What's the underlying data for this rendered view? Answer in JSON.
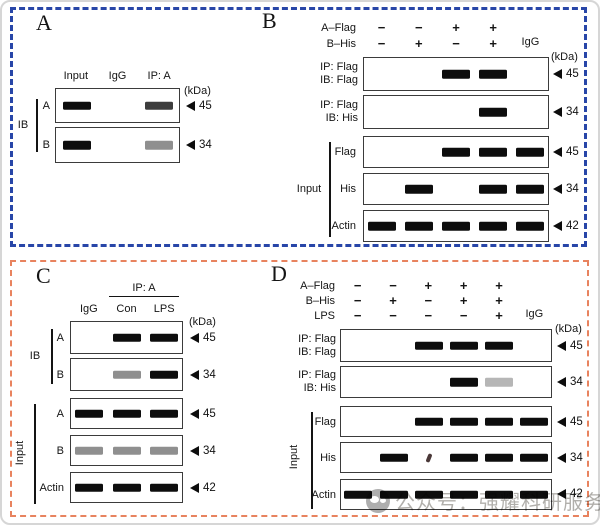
{
  "colors": {
    "top_section_border": "#2846a8",
    "bottom_section_border": "#e8835f",
    "band_black": "#0d0d0d",
    "band_dark": "#3d3d3d",
    "band_gray": "#8f8f8f",
    "band_light": "#b6b6b6"
  },
  "watermark": {
    "icon": "chat-logo-icon",
    "text": "公众号：强耀科研服务"
  },
  "panel_a": {
    "letter": "A",
    "col_headers": [
      "Input",
      "IgG",
      "IP: A"
    ],
    "kda": "(kDa)",
    "group_ib": "IB",
    "rows": [
      {
        "label": "A",
        "marker": "45",
        "lanes": 3,
        "bands": [
          {
            "lane": 0,
            "shade": "black"
          },
          {
            "lane": 2,
            "shade": "dark"
          }
        ]
      },
      {
        "label": "B",
        "marker": "34",
        "lanes": 3,
        "bands": [
          {
            "lane": 0,
            "shade": "black"
          },
          {
            "lane": 2,
            "shade": "gray"
          }
        ]
      }
    ]
  },
  "panel_b": {
    "letter": "B",
    "kda": "(kDa)",
    "group_input": "Input",
    "header_rows": [
      {
        "label": "A–Flag",
        "cells": [
          "−",
          "−",
          "+",
          "+",
          ""
        ]
      },
      {
        "label": "B–His",
        "cells": [
          "−",
          "+",
          "−",
          "+",
          "IgG"
        ]
      }
    ],
    "ip_rows": [
      {
        "label1": "IP: Flag",
        "label2": "IB: Flag",
        "marker": "45",
        "lanes": 5,
        "bands": [
          {
            "lane": 2,
            "shade": "black"
          },
          {
            "lane": 3,
            "shade": "black"
          }
        ]
      },
      {
        "label1": "IP: Flag",
        "label2": "IB: His",
        "marker": "34",
        "lanes": 5,
        "bands": [
          {
            "lane": 3,
            "shade": "black"
          }
        ]
      }
    ],
    "input_rows": [
      {
        "label": "Flag",
        "marker": "45",
        "lanes": 5,
        "bands": [
          {
            "lane": 2,
            "shade": "black"
          },
          {
            "lane": 3,
            "shade": "black"
          },
          {
            "lane": 4,
            "shade": "black"
          }
        ]
      },
      {
        "label": "His",
        "marker": "34",
        "lanes": 5,
        "bands": [
          {
            "lane": 1,
            "shade": "black"
          },
          {
            "lane": 3,
            "shade": "black"
          },
          {
            "lane": 4,
            "shade": "black"
          }
        ]
      },
      {
        "label": "Actin",
        "marker": "42",
        "lanes": 5,
        "bands": [
          {
            "lane": 0,
            "shade": "black"
          },
          {
            "lane": 1,
            "shade": "black"
          },
          {
            "lane": 2,
            "shade": "black"
          },
          {
            "lane": 3,
            "shade": "black"
          },
          {
            "lane": 4,
            "shade": "black"
          }
        ]
      }
    ]
  },
  "panel_c": {
    "letter": "C",
    "ip_overline": "IP: A",
    "col_headers": [
      "IgG",
      "Con",
      "LPS"
    ],
    "kda": "(kDa)",
    "group_ib": "IB",
    "group_input": "Input",
    "ib_rows": [
      {
        "label": "A",
        "marker": "45",
        "lanes": 3,
        "bands": [
          {
            "lane": 1,
            "shade": "black"
          },
          {
            "lane": 2,
            "shade": "black"
          }
        ]
      },
      {
        "label": "B",
        "marker": "34",
        "lanes": 3,
        "bands": [
          {
            "lane": 1,
            "shade": "gray"
          },
          {
            "lane": 2,
            "shade": "black"
          }
        ]
      }
    ],
    "input_rows": [
      {
        "label": "A",
        "marker": "45",
        "lanes": 3,
        "bands": [
          {
            "lane": 0,
            "shade": "black"
          },
          {
            "lane": 1,
            "shade": "black"
          },
          {
            "lane": 2,
            "shade": "black"
          }
        ]
      },
      {
        "label": "B",
        "marker": "34",
        "lanes": 3,
        "bands": [
          {
            "lane": 0,
            "shade": "gray"
          },
          {
            "lane": 1,
            "shade": "gray"
          },
          {
            "lane": 2,
            "shade": "gray"
          }
        ]
      },
      {
        "label": "Actin",
        "marker": "42",
        "lanes": 3,
        "bands": [
          {
            "lane": 0,
            "shade": "black"
          },
          {
            "lane": 1,
            "shade": "black"
          },
          {
            "lane": 2,
            "shade": "black"
          }
        ]
      }
    ]
  },
  "panel_d": {
    "letter": "D",
    "kda": "(kDa)",
    "group_input": "Input",
    "header_rows": [
      {
        "label": "A–Flag",
        "cells": [
          "−",
          "−",
          "+",
          "+",
          "+",
          ""
        ]
      },
      {
        "label": "B–His",
        "cells": [
          "−",
          "+",
          "−",
          "+",
          "+",
          ""
        ]
      },
      {
        "label": "LPS",
        "cells": [
          "−",
          "−",
          "−",
          "−",
          "+",
          "IgG"
        ]
      }
    ],
    "ip_rows": [
      {
        "label1": "IP: Flag",
        "label2": "IB: Flag",
        "marker": "45",
        "lanes": 6,
        "bands": [
          {
            "lane": 2,
            "shade": "black"
          },
          {
            "lane": 3,
            "shade": "black"
          },
          {
            "lane": 4,
            "shade": "black"
          }
        ]
      },
      {
        "label1": "IP: Flag",
        "label2": "IB: His",
        "marker": "34",
        "lanes": 6,
        "bands": [
          {
            "lane": 3,
            "shade": "black"
          },
          {
            "lane": 4,
            "shade": "light"
          }
        ]
      }
    ],
    "input_rows": [
      {
        "label": "Flag",
        "marker": "45",
        "lanes": 6,
        "bands": [
          {
            "lane": 2,
            "shade": "black"
          },
          {
            "lane": 3,
            "shade": "black"
          },
          {
            "lane": 4,
            "shade": "black"
          },
          {
            "lane": 5,
            "shade": "black"
          }
        ]
      },
      {
        "label": "His",
        "marker": "34",
        "lanes": 6,
        "bands": [
          {
            "lane": 1,
            "shade": "black"
          },
          {
            "lane": 2,
            "shade": "speck"
          },
          {
            "lane": 3,
            "shade": "black"
          },
          {
            "lane": 4,
            "shade": "black"
          },
          {
            "lane": 5,
            "shade": "black"
          }
        ]
      },
      {
        "label": "Actin",
        "marker": "42",
        "lanes": 6,
        "bands": [
          {
            "lane": 0,
            "shade": "black"
          },
          {
            "lane": 1,
            "shade": "black"
          },
          {
            "lane": 2,
            "shade": "black"
          },
          {
            "lane": 3,
            "shade": "black"
          },
          {
            "lane": 4,
            "shade": "black"
          },
          {
            "lane": 5,
            "shade": "black"
          }
        ]
      }
    ]
  }
}
